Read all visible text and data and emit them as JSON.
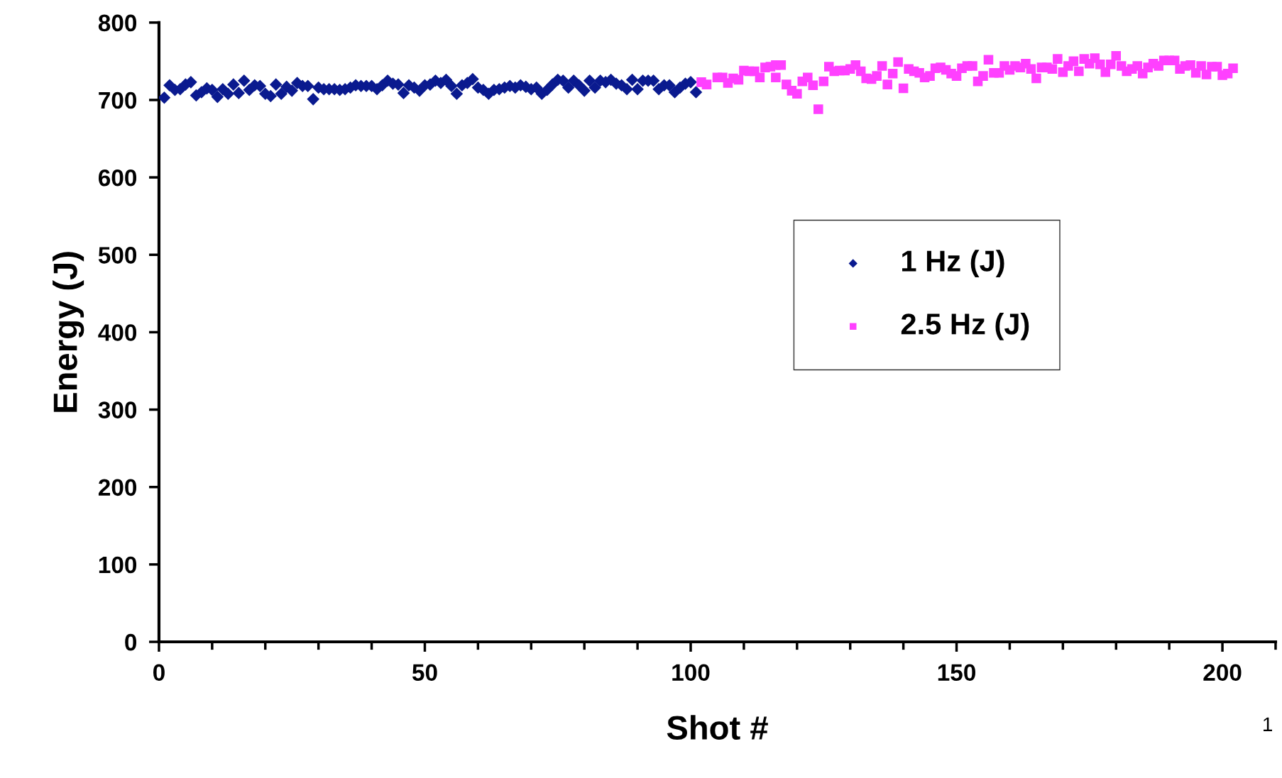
{
  "chart_data": {
    "type": "scatter",
    "xlabel": "Shot #",
    "ylabel": "Energy (J)",
    "xlim": [
      0,
      210
    ],
    "xticks": [
      0,
      50,
      100,
      150,
      200
    ],
    "ylim": [
      0,
      800
    ],
    "yticks": [
      0,
      100,
      200,
      300,
      400,
      500,
      600,
      700,
      800
    ],
    "grid": false,
    "legend": "right",
    "annotations": [
      "1"
    ],
    "series": [
      {
        "name": "1 Hz (J)",
        "color": "#0a1a8f",
        "marker": "diamond",
        "x": [
          1,
          2,
          3,
          4,
          5,
          6,
          7,
          8,
          9,
          10,
          11,
          12,
          13,
          14,
          15,
          16,
          17,
          18,
          19,
          20,
          21,
          22,
          23,
          24,
          25,
          26,
          27,
          28,
          29,
          30,
          31,
          32,
          33,
          34,
          35,
          36,
          37,
          38,
          39,
          40,
          41,
          42,
          43,
          44,
          45,
          46,
          47,
          48,
          49,
          50,
          51,
          52,
          53,
          54,
          55,
          56,
          57,
          58,
          59,
          60,
          61,
          62,
          63,
          64,
          65,
          66,
          67,
          68,
          69,
          70,
          71,
          72,
          73,
          74,
          75,
          76,
          77,
          78,
          79,
          80,
          81,
          82,
          83,
          84,
          85,
          86,
          87,
          88,
          89,
          90,
          91,
          92,
          93,
          94,
          95,
          96,
          97,
          98,
          99,
          100,
          101
        ],
        "values": [
          703,
          719,
          713,
          714,
          720,
          723,
          706,
          710,
          715,
          713,
          704,
          714,
          708,
          720,
          709,
          725,
          713,
          719,
          718,
          708,
          705,
          720,
          708,
          717,
          712,
          722,
          718,
          718,
          701,
          716,
          714,
          714,
          714,
          713,
          714,
          716,
          719,
          718,
          718,
          718,
          714,
          719,
          725,
          721,
          720,
          709,
          719,
          716,
          712,
          719,
          720,
          725,
          722,
          726,
          718,
          708,
          719,
          722,
          727,
          716,
          713,
          708,
          713,
          714,
          716,
          718,
          716,
          719,
          717,
          714,
          716,
          708,
          713,
          720,
          726,
          725,
          716,
          725,
          719,
          712,
          725,
          716,
          725,
          723,
          726,
          721,
          719,
          714,
          726,
          714,
          725,
          725,
          725,
          714,
          719,
          719,
          710,
          716,
          721,
          723,
          710
        ]
      },
      {
        "name": "2.5 Hz (J)",
        "color": "#ff40ff",
        "marker": "square",
        "x": [
          102,
          103,
          105,
          106,
          107,
          108,
          109,
          110,
          111,
          112,
          113,
          114,
          115,
          116,
          117,
          116,
          118,
          119,
          120,
          121,
          122,
          123,
          124,
          125,
          126,
          127,
          128,
          129,
          130,
          131,
          132,
          133,
          134,
          135,
          136,
          137,
          138,
          139,
          140,
          141,
          142,
          143,
          144,
          145,
          146,
          147,
          148,
          149,
          150,
          151,
          152,
          153,
          154,
          155,
          156,
          157,
          158,
          159,
          160,
          161,
          162,
          163,
          164,
          165,
          166,
          167,
          168,
          169,
          170,
          171,
          172,
          173,
          174,
          175,
          176,
          177,
          178,
          179,
          180,
          181,
          182,
          183,
          184,
          185,
          186,
          187,
          188,
          189,
          190,
          191,
          192,
          193,
          194,
          195,
          196,
          197,
          198,
          199,
          200,
          201,
          202
        ],
        "values": [
          723,
          720,
          729,
          729,
          722,
          728,
          726,
          738,
          737,
          737,
          729,
          742,
          743,
          745,
          745,
          729,
          720,
          712,
          708,
          724,
          729,
          719,
          688,
          724,
          743,
          737,
          738,
          738,
          740,
          745,
          737,
          728,
          727,
          731,
          744,
          720,
          734,
          749,
          715,
          740,
          737,
          735,
          729,
          731,
          741,
          742,
          739,
          734,
          731,
          741,
          744,
          744,
          724,
          731,
          752,
          735,
          735,
          744,
          739,
          744,
          742,
          747,
          740,
          728,
          742,
          742,
          740,
          753,
          736,
          744,
          750,
          737,
          753,
          747,
          754,
          746,
          736,
          746,
          757,
          744,
          737,
          740,
          744,
          734,
          742,
          747,
          744,
          751,
          751,
          751,
          740,
          744,
          745,
          735,
          744,
          733,
          743,
          743,
          732,
          734,
          741
        ]
      }
    ]
  }
}
